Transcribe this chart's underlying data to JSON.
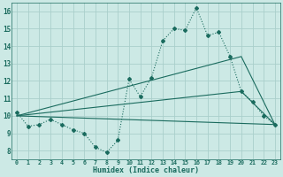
{
  "bg_color": "#cce9e5",
  "grid_color": "#aacfcb",
  "line_color": "#1a6b5e",
  "x_label": "Humidex (Indice chaleur)",
  "xlim": [
    -0.5,
    23.5
  ],
  "ylim": [
    7.5,
    16.5
  ],
  "yticks": [
    8,
    9,
    10,
    11,
    12,
    13,
    14,
    15,
    16
  ],
  "xticks": [
    0,
    1,
    2,
    3,
    4,
    5,
    6,
    7,
    8,
    9,
    10,
    11,
    12,
    13,
    14,
    15,
    16,
    17,
    18,
    19,
    20,
    21,
    22,
    23
  ],
  "series1_x": [
    0,
    1,
    2,
    3,
    4,
    5,
    6,
    7,
    8,
    9,
    10,
    11,
    12,
    13,
    14,
    15,
    16,
    17,
    18,
    19,
    20,
    21,
    22,
    23
  ],
  "series1_y": [
    10.2,
    9.4,
    9.5,
    9.8,
    9.5,
    9.2,
    9.0,
    8.2,
    7.9,
    8.6,
    12.1,
    11.1,
    12.2,
    14.3,
    15.0,
    14.9,
    16.2,
    14.6,
    14.8,
    13.4,
    11.4,
    10.8,
    10.0,
    9.5
  ],
  "line2_x": [
    0,
    23
  ],
  "line2_y": [
    10.0,
    9.5
  ],
  "line3_x": [
    0,
    20,
    23
  ],
  "line3_y": [
    10.0,
    11.4,
    9.5
  ],
  "line4_x": [
    0,
    20,
    23
  ],
  "line4_y": [
    10.0,
    13.4,
    9.5
  ]
}
